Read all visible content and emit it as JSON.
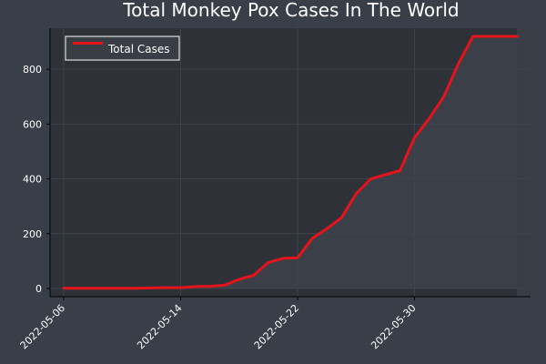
{
  "chart_data": {
    "type": "line",
    "title": "Total Monkey Pox Cases In The World",
    "xlabel": "",
    "ylabel": "",
    "x_tick_labels": [
      "2022-05-06",
      "2022-05-14",
      "2022-05-22",
      "2022-05-30"
    ],
    "x_tick_values": [
      "2022-05-06",
      "2022-05-14",
      "2022-05-22",
      "2022-05-30"
    ],
    "y_ticks": [
      0,
      200,
      400,
      600,
      800
    ],
    "ylim": [
      -30,
      950
    ],
    "xlim": [
      "2022-05-06",
      "2022-06-06"
    ],
    "grid": true,
    "legend_position": "top-left",
    "colors": {
      "background": "#393f48",
      "plot_background": "#2e3238",
      "line": "#e5141a",
      "axis": "#000000",
      "text": "#ffffff"
    },
    "x": [
      "2022-05-06",
      "2022-05-07",
      "2022-05-08",
      "2022-05-09",
      "2022-05-10",
      "2022-05-11",
      "2022-05-12",
      "2022-05-13",
      "2022-05-14",
      "2022-05-15",
      "2022-05-16",
      "2022-05-17",
      "2022-05-18",
      "2022-05-19",
      "2022-05-20",
      "2022-05-21",
      "2022-05-22",
      "2022-05-23",
      "2022-05-24",
      "2022-05-25",
      "2022-05-26",
      "2022-05-27",
      "2022-05-28",
      "2022-05-29",
      "2022-05-30",
      "2022-05-31",
      "2022-06-01",
      "2022-06-02",
      "2022-06-03",
      "2022-06-04",
      "2022-06-05",
      "2022-06-06"
    ],
    "series": [
      {
        "name": "Total Cases",
        "values": [
          1,
          1,
          1,
          1,
          1,
          1,
          2,
          3,
          3,
          7,
          8,
          12,
          33,
          48,
          95,
          110,
          112,
          183,
          218,
          258,
          345,
          400,
          415,
          430,
          550,
          620,
          700,
          820,
          920,
          920,
          920,
          920
        ]
      }
    ]
  }
}
